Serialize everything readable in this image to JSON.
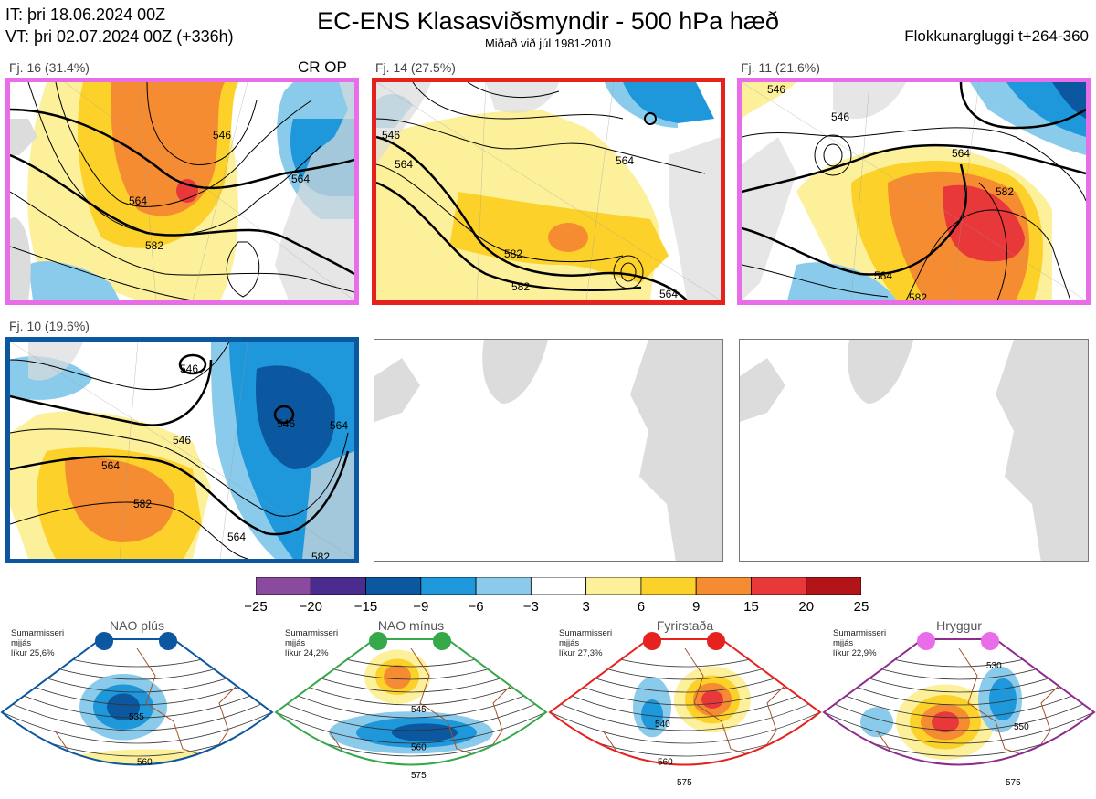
{
  "header": {
    "it_line": "IT: þri 18.06.2024 00Z",
    "vt_line": "VT: þri 02.07.2024 00Z  (+336h)",
    "title": "EC-ENS Klasasviðsmyndir - 500 hPa hæð",
    "subtitle": "Miðað við júl 1981-2010",
    "window": "Flokkunargluggi t+264-360"
  },
  "clusters": [
    {
      "label": "Fj. 16 (31.4%)",
      "extra": "CR OP",
      "border": "#e96ce9",
      "contours": [
        "546",
        "564",
        "582",
        "564"
      ]
    },
    {
      "label": "Fj. 14 (27.5%)",
      "extra": "",
      "border": "#e5221e",
      "contours": [
        "546",
        "564",
        "564",
        "582",
        "582",
        "564"
      ]
    },
    {
      "label": "Fj. 11 (21.6%)",
      "extra": "",
      "border": "#e96ce9",
      "contours": [
        "546",
        "546",
        "564",
        "582",
        "564",
        "582"
      ]
    },
    {
      "label": "Fj. 10 (19.6%)",
      "extra": "",
      "border": "#0b57a0",
      "contours": [
        "546",
        "546",
        "546",
        "564",
        "564",
        "582",
        "564",
        "582"
      ]
    }
  ],
  "colorbar": {
    "colors": [
      "#8a4a9e",
      "#4a2c8e",
      "#0b57a0",
      "#1e97db",
      "#8acbec",
      "#ffffff",
      "#fdf09a",
      "#fcd22a",
      "#f68c32",
      "#e9383a",
      "#b21418"
    ],
    "labels": [
      "−25",
      "−20",
      "−15",
      "−9",
      "−6",
      "−3",
      "3",
      "6",
      "9",
      "15",
      "20",
      "25"
    ]
  },
  "regimes": [
    {
      "title": "NAO plús",
      "info": [
        "Sumarmisseri",
        "mjjás",
        "líkur 25,6%"
      ],
      "border": "#0b57a0",
      "dot": "#0b57a0",
      "contours": [
        "535",
        "560"
      ]
    },
    {
      "title": "NAO mínus",
      "info": [
        "Sumarmisseri",
        "mjjás",
        "líkur 24,2%"
      ],
      "border": "#35a84a",
      "dot": "#35a84a",
      "contours": [
        "545",
        "560",
        "575"
      ]
    },
    {
      "title": "Fyrirstaða",
      "info": [
        "Sumarmisseri",
        "mjjás",
        "líkur 27,3%"
      ],
      "border": "#e5221e",
      "dot": "#e5221e",
      "contours": [
        "540",
        "560",
        "575"
      ]
    },
    {
      "title": "Hryggur",
      "info": [
        "Sumarmisseri",
        "mjjás",
        "líkur 22,9%"
      ],
      "border": "#8e2c8e",
      "dot": "#e96ce9",
      "contours": [
        "530",
        "550",
        "575"
      ]
    }
  ]
}
